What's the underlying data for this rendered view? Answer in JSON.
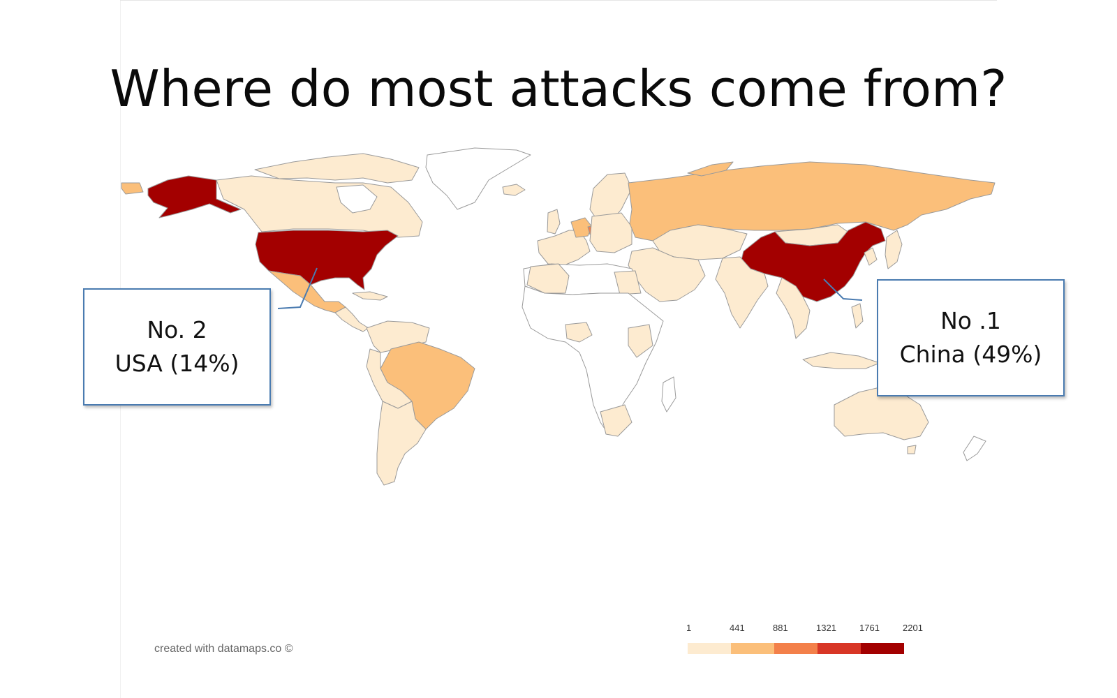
{
  "title": "Where do most attacks come from?",
  "callouts": {
    "usa": {
      "rank": "No. 2",
      "label": "USA (14%)"
    },
    "china": {
      "rank": "No .1",
      "label": "China (49%)"
    }
  },
  "credit": "created with datamaps.co ©",
  "legend": {
    "ticks": [
      "1",
      "441",
      "881",
      "1321",
      "1761",
      "2201"
    ],
    "colors": [
      "#fdebd0",
      "#fbbf7a",
      "#f3804a",
      "#d83626",
      "#a30000"
    ]
  },
  "colors": {
    "no_data": "#ffffff",
    "border": "#9a9a9a",
    "callout_border": "#4a7bb0"
  }
}
